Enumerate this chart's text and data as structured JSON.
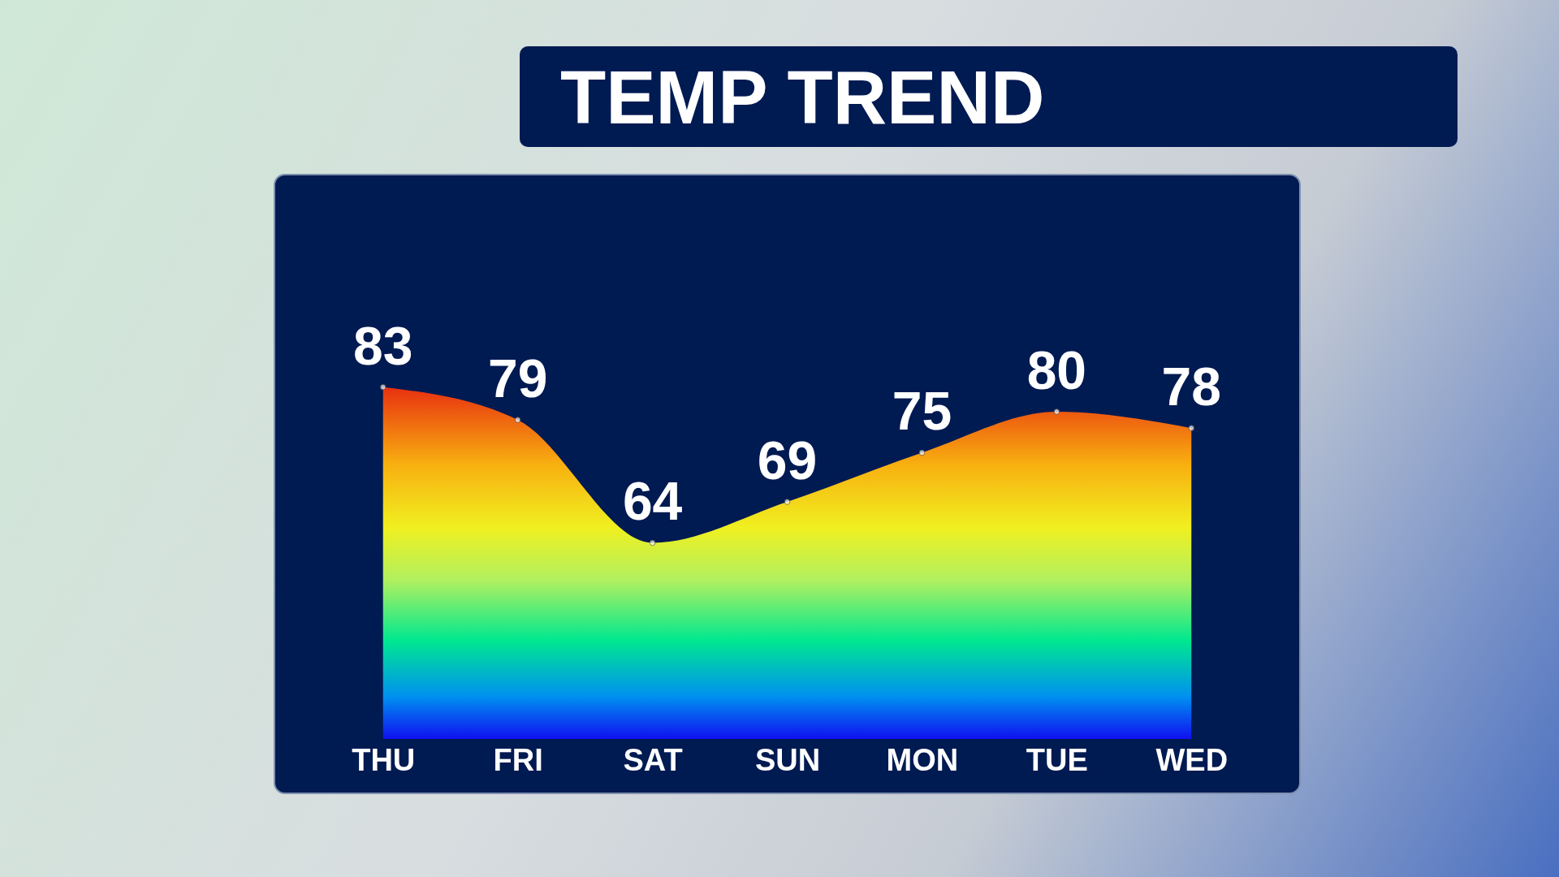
{
  "chart_data": {
    "type": "area",
    "title": "TEMP TREND",
    "categories": [
      "THU",
      "FRI",
      "SAT",
      "SUN",
      "MON",
      "TUE",
      "WED"
    ],
    "series": [
      {
        "color": "#e83010",
        "values": [
          83,
          79,
          64,
          69,
          75,
          80,
          78
        ]
      }
    ],
    "tick_labels": "x",
    "data_labels": true,
    "marker": "circle"
  }
}
